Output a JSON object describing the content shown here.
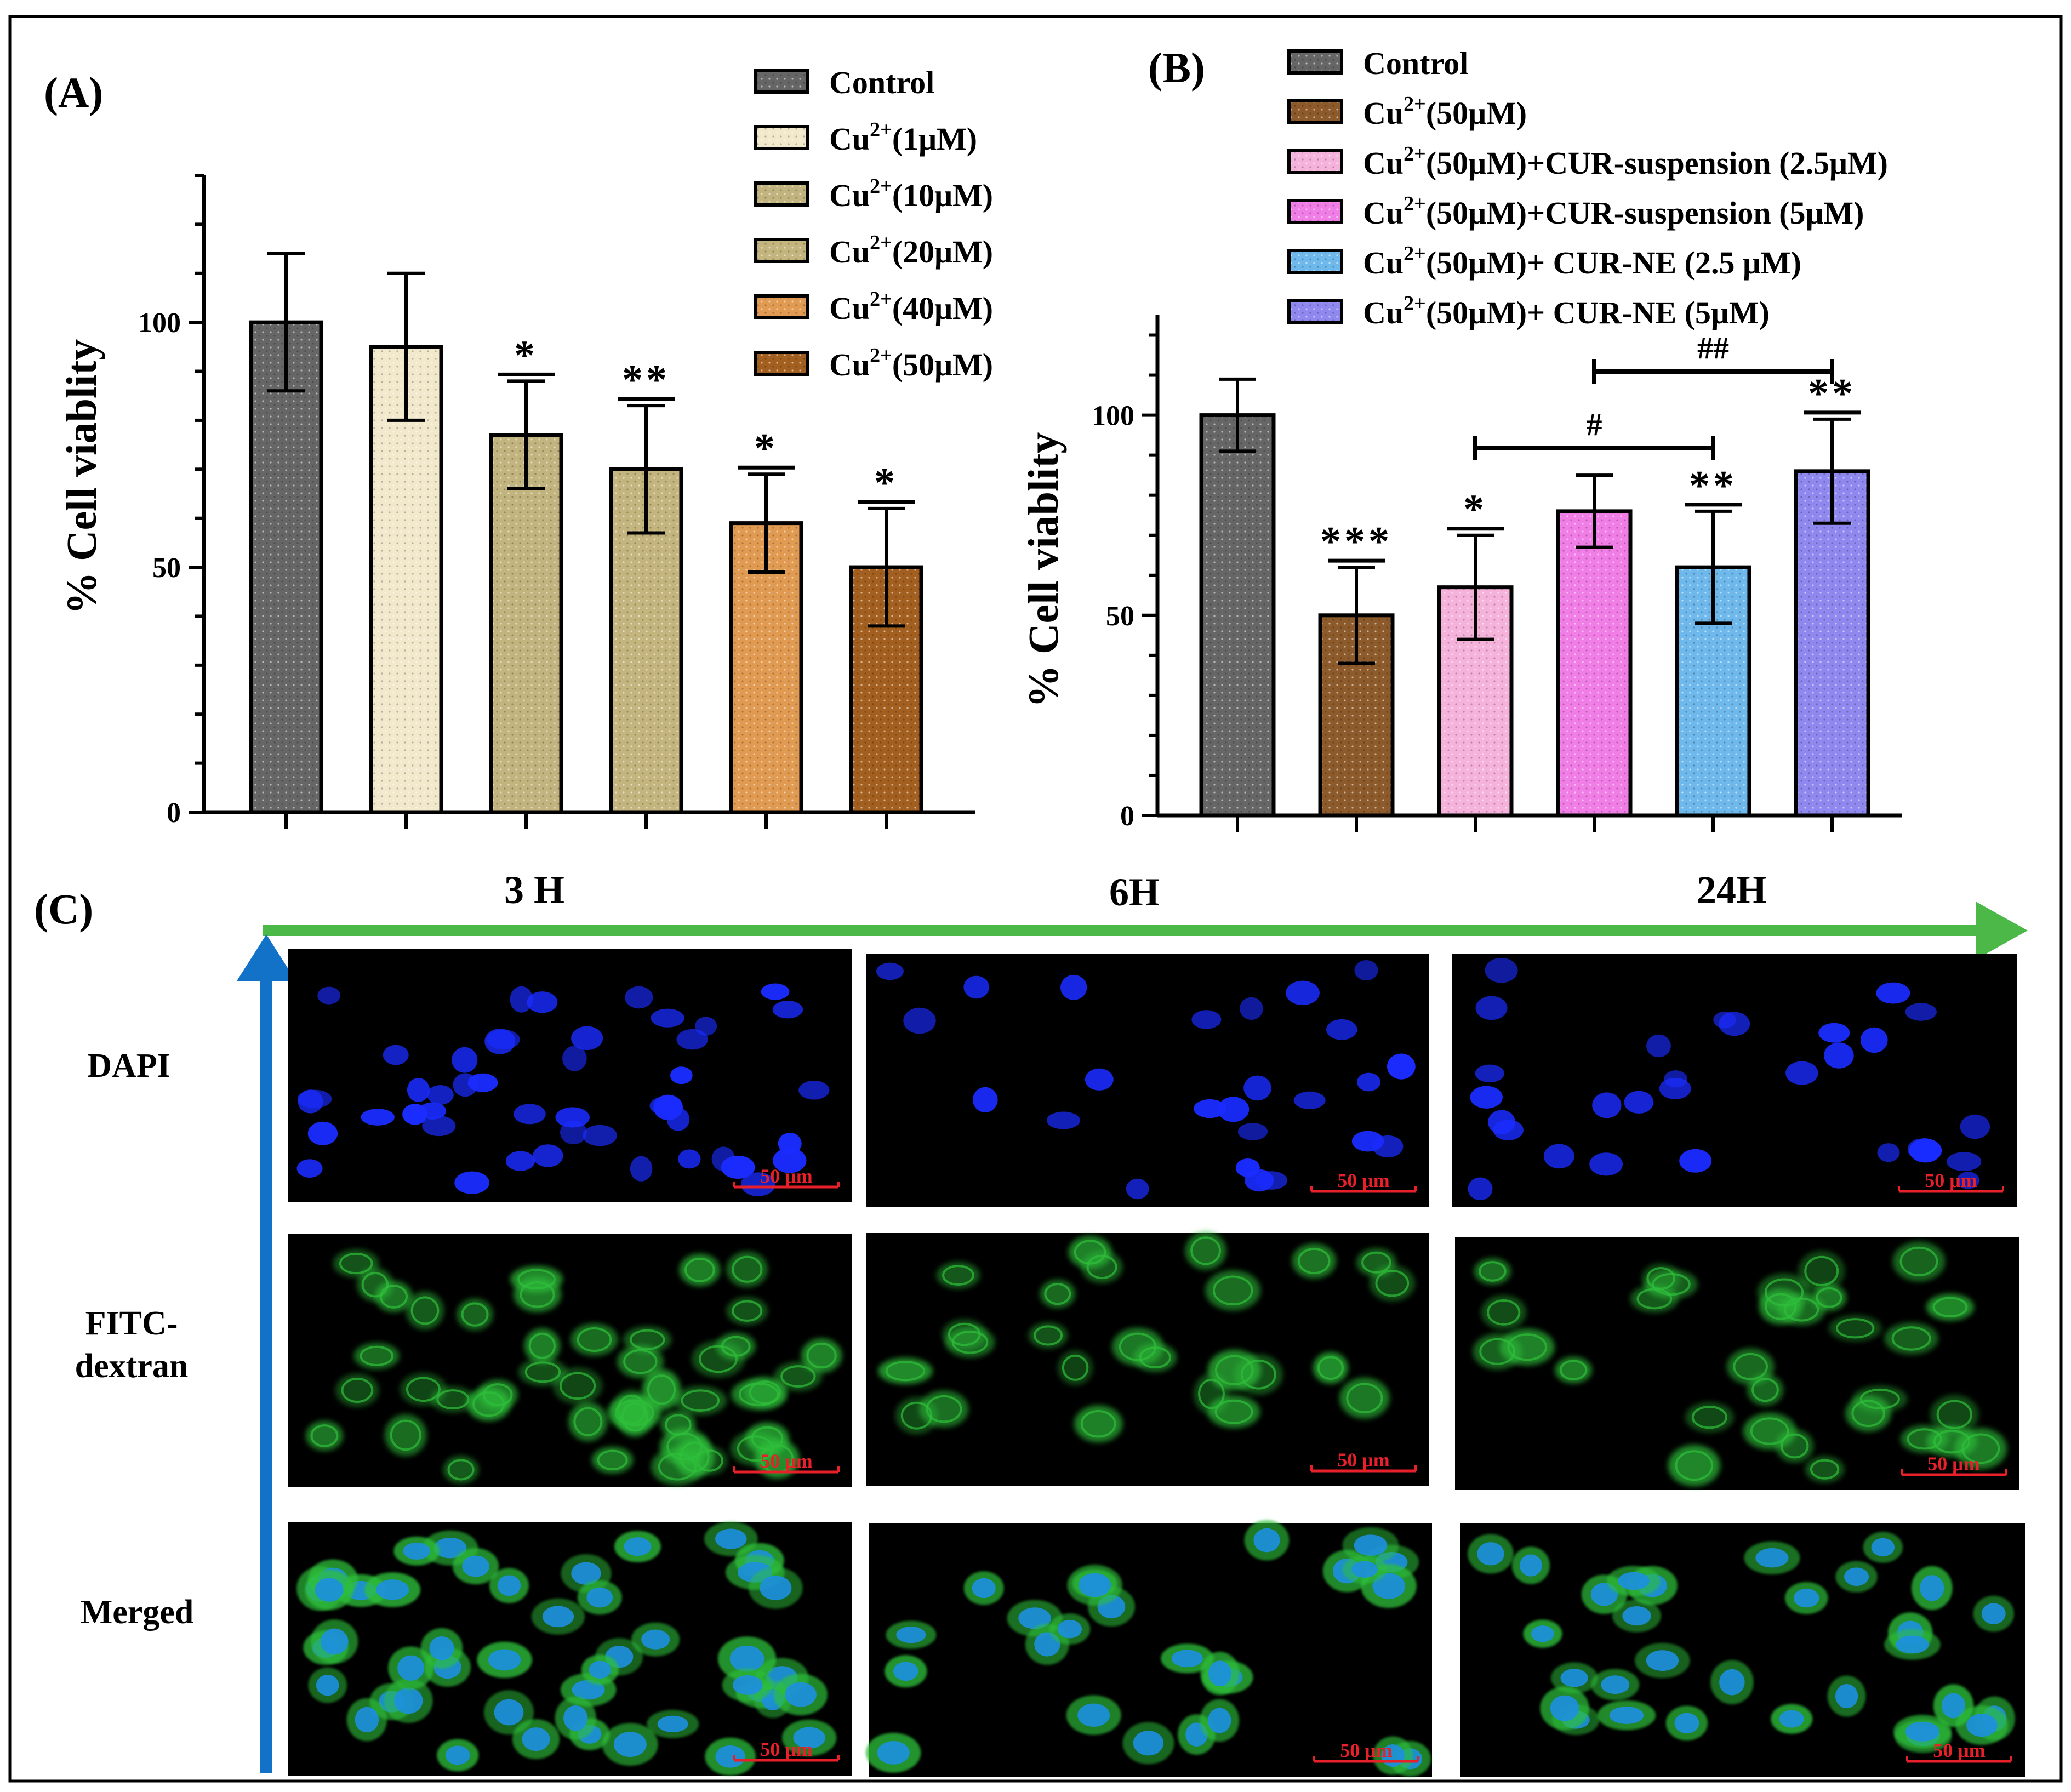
{
  "chart_data": [
    {
      "type": "bar",
      "panel_label": "(A)",
      "ylabel": "% Cell viablity",
      "ylim": [
        0,
        130
      ],
      "yticks": [
        0,
        50,
        100
      ],
      "categories": [
        "Control",
        "Cu2+(1μM)",
        "Cu2+(10μM)",
        "Cu2+(20μM)",
        "Cu2+(40μM)",
        "Cu2+(50μM)"
      ],
      "legend": [
        {
          "base": "Control",
          "sup": "",
          "rest": ""
        },
        {
          "base": "Cu",
          "sup": "2+",
          "rest": "(1μM)"
        },
        {
          "base": "Cu",
          "sup": "2+",
          "rest": "(10μM)"
        },
        {
          "base": "Cu",
          "sup": "2+",
          "rest": "(20μM)"
        },
        {
          "base": "Cu",
          "sup": "2+",
          "rest": "(40μM)"
        },
        {
          "base": "Cu",
          "sup": "2+",
          "rest": "(50μM)"
        }
      ],
      "values": [
        100,
        95,
        77,
        70,
        59,
        50
      ],
      "errors": [
        14,
        15,
        11,
        13,
        10,
        12
      ],
      "significance": [
        "",
        "",
        "*",
        "**",
        "*",
        "*"
      ],
      "colors": [
        "#666666",
        "#f2e8cc",
        "#c2b47e",
        "#c4b57e",
        "#e09a52",
        "#a35f1f"
      ],
      "legend_position": "top-right",
      "grid": false
    },
    {
      "type": "bar",
      "panel_label": "(B)",
      "ylabel": "% Cell viablity",
      "ylim": [
        0,
        125
      ],
      "yticks": [
        0,
        50,
        100
      ],
      "categories": [
        "Control",
        "Cu2+(50μM)",
        "Cu2+(50μM)+CUR-suspension (2.5μM)",
        "Cu2+(50μM)+CUR-suspension (5μM)",
        "Cu2+(50μM)+ CUR-NE (2.5 μM)",
        "Cu2+(50μM)+ CUR-NE (5μM)"
      ],
      "legend": [
        {
          "base": "Control",
          "sup": "",
          "rest": ""
        },
        {
          "base": "Cu",
          "sup": "2+",
          "rest": "(50μM)"
        },
        {
          "base": "Cu",
          "sup": "2+",
          "rest": "(50μM)+CUR-suspension (2.5μM)"
        },
        {
          "base": "Cu",
          "sup": "2+",
          "rest": "(50μM)+CUR-suspension (5μM)"
        },
        {
          "base": "Cu",
          "sup": "2+",
          "rest": "(50μM)+ CUR-NE (2.5 μM)"
        },
        {
          "base": "Cu",
          "sup": "2+",
          "rest": "(50μM)+ CUR-NE (5μM)"
        }
      ],
      "values": [
        100,
        50,
        57,
        76,
        62,
        86
      ],
      "errors": [
        9,
        12,
        13,
        9,
        14,
        13
      ],
      "significance": [
        "",
        "***",
        "*",
        "",
        "**",
        "**"
      ],
      "brackets": [
        {
          "from": 2,
          "to": 4,
          "label": "#"
        },
        {
          "from": 3,
          "to": 5,
          "label": "##"
        }
      ],
      "colors": [
        "#666666",
        "#8c5a2b",
        "#f5b3dc",
        "#f07ee6",
        "#6fb8ec",
        "#8f88ee"
      ],
      "legend_position": "top",
      "grid": false
    }
  ],
  "microscopy": {
    "panel_label": "(C)",
    "columns": [
      "3 H",
      "6H",
      "24H"
    ],
    "rows": [
      "DAPI",
      "FITC-\ndextran",
      "Merged"
    ],
    "scale_bar": "50 μm",
    "stain_colors": {
      "dapi": "#1a2cff",
      "fitc": "#2fbf3a",
      "merged_nucleus": "#1d8fe0"
    },
    "arrow_colors": {
      "time": "#4cb848",
      "vertical": "#1272c8"
    }
  }
}
